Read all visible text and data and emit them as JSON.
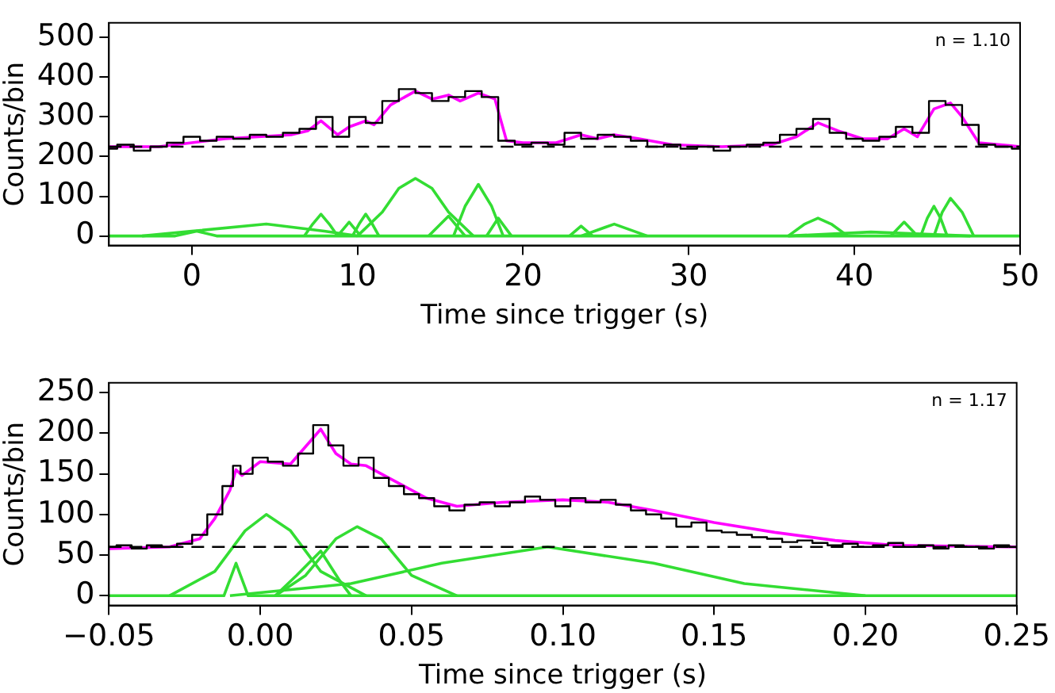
{
  "chart_data": [
    {
      "type": "line",
      "xlabel": "Time since trigger (s)",
      "ylabel": "Counts/bin",
      "annotations": [
        "n = 1.10"
      ],
      "xlim": [
        -5,
        50
      ],
      "ylim": [
        -24,
        537
      ],
      "xticks": [
        0,
        10,
        20,
        30,
        40,
        50
      ],
      "yticks": [
        0,
        100,
        200,
        300,
        400,
        500
      ],
      "grid": false,
      "legend": false,
      "marker": "none",
      "ref_lines": [
        {
          "axis": "y",
          "value": 225,
          "color": "#000000",
          "line_style": "dashed"
        }
      ],
      "series": [
        {
          "type": "step",
          "color": "#000000",
          "x": [
            -5,
            -4,
            -3,
            -2,
            -1,
            0,
            1,
            2,
            3,
            4,
            5,
            6,
            7,
            8,
            9,
            10,
            11,
            12,
            13,
            14,
            15,
            16,
            17,
            18,
            19,
            20,
            21,
            22,
            23,
            24,
            25,
            26,
            27,
            28,
            29,
            30,
            31,
            32,
            33,
            34,
            35,
            36,
            37,
            38,
            39,
            40,
            41,
            42,
            43,
            44,
            45,
            46,
            47,
            48,
            49,
            50
          ],
          "values": [
            220,
            230,
            215,
            225,
            235,
            250,
            240,
            250,
            245,
            255,
            250,
            260,
            270,
            300,
            250,
            300,
            285,
            340,
            370,
            360,
            340,
            350,
            365,
            350,
            240,
            230,
            235,
            230,
            260,
            245,
            255,
            250,
            240,
            225,
            230,
            220,
            225,
            215,
            225,
            230,
            235,
            255,
            270,
            295,
            260,
            245,
            240,
            250,
            275,
            260,
            340,
            330,
            280,
            230,
            225,
            220
          ]
        },
        {
          "type": "line",
          "color": "#ff00ff",
          "x": [
            -5,
            -2,
            0,
            2,
            4,
            6,
            7,
            7.8,
            8.8,
            9.5,
            10.5,
            11,
            12,
            13.5,
            14.5,
            15.5,
            16.2,
            17.3,
            18.3,
            19,
            20,
            22,
            23.5,
            24.5,
            25.5,
            27,
            29,
            32,
            35,
            36.5,
            37.8,
            39,
            40.5,
            42,
            43,
            43.8,
            44.8,
            45.8,
            46.5,
            47.5,
            50
          ],
          "values": [
            225,
            225,
            235,
            245,
            250,
            255,
            265,
            290,
            255,
            275,
            290,
            280,
            330,
            365,
            345,
            355,
            340,
            360,
            345,
            240,
            235,
            235,
            255,
            245,
            255,
            245,
            230,
            225,
            230,
            250,
            285,
            265,
            245,
            245,
            270,
            250,
            320,
            335,
            300,
            235,
            225
          ]
        },
        {
          "type": "line",
          "color": "#33dd33",
          "x": [
            -5,
            -1,
            0.3,
            1.5,
            50
          ],
          "values": [
            0,
            0,
            12,
            0,
            0
          ]
        },
        {
          "type": "line",
          "color": "#33dd33",
          "x": [
            -3,
            0,
            4.5,
            8,
            10
          ],
          "values": [
            0,
            12,
            30,
            12,
            0
          ]
        },
        {
          "type": "line",
          "color": "#33dd33",
          "x": [
            6.8,
            7.3,
            7.8,
            8.3,
            8.8
          ],
          "values": [
            0,
            30,
            55,
            30,
            0
          ]
        },
        {
          "type": "line",
          "color": "#33dd33",
          "x": [
            8.8,
            9.5,
            10.2
          ],
          "values": [
            0,
            35,
            0
          ]
        },
        {
          "type": "line",
          "color": "#33dd33",
          "x": [
            9.7,
            10.1,
            10.5,
            10.9,
            11.3
          ],
          "values": [
            0,
            30,
            55,
            30,
            0
          ]
        },
        {
          "type": "line",
          "color": "#33dd33",
          "x": [
            10,
            11.5,
            12.5,
            13.5,
            14.5,
            15.5,
            17
          ],
          "values": [
            0,
            60,
            120,
            145,
            120,
            60,
            0
          ]
        },
        {
          "type": "line",
          "color": "#33dd33",
          "x": [
            14.3,
            15.5,
            16.5
          ],
          "values": [
            0,
            50,
            0
          ]
        },
        {
          "type": "line",
          "color": "#33dd33",
          "x": [
            15.8,
            16.5,
            17.3,
            18.1,
            18.8
          ],
          "values": [
            0,
            75,
            130,
            75,
            0
          ]
        },
        {
          "type": "line",
          "color": "#33dd33",
          "x": [
            17.8,
            18.5,
            19.3
          ],
          "values": [
            0,
            45,
            0
          ]
        },
        {
          "type": "line",
          "color": "#33dd33",
          "x": [
            22.8,
            23.5,
            24.2
          ],
          "values": [
            0,
            25,
            0
          ]
        },
        {
          "type": "line",
          "color": "#33dd33",
          "x": [
            23.5,
            25.5,
            27.5
          ],
          "values": [
            0,
            30,
            0
          ]
        },
        {
          "type": "line",
          "color": "#33dd33",
          "x": [
            36,
            37,
            37.8,
            38.6,
            39.6
          ],
          "values": [
            0,
            30,
            45,
            30,
            0
          ]
        },
        {
          "type": "line",
          "color": "#33dd33",
          "x": [
            36,
            41,
            47
          ],
          "values": [
            0,
            10,
            0
          ]
        },
        {
          "type": "line",
          "color": "#33dd33",
          "x": [
            42.2,
            43,
            43.8
          ],
          "values": [
            0,
            35,
            0
          ]
        },
        {
          "type": "line",
          "color": "#33dd33",
          "x": [
            44,
            44.4,
            44.8,
            45.2,
            45.6
          ],
          "values": [
            0,
            45,
            75,
            45,
            0
          ]
        },
        {
          "type": "line",
          "color": "#33dd33",
          "x": [
            44.8,
            45.3,
            45.8,
            46.5,
            47.2
          ],
          "values": [
            0,
            60,
            95,
            60,
            0
          ]
        }
      ]
    },
    {
      "type": "line",
      "xlabel": "Time since trigger (s)",
      "ylabel": "Counts/bin",
      "annotations": [
        "n = 1.17"
      ],
      "xlim": [
        -0.05,
        0.25
      ],
      "ylim": [
        -12,
        262
      ],
      "xticks": [
        {
          "value": -0.05,
          "label": "−0.05"
        },
        {
          "value": 0,
          "label": "0.00"
        },
        0.05,
        {
          "value": 0.1,
          "label": "0.10"
        },
        0.15,
        {
          "value": 0.2,
          "label": "0.20"
        },
        0.25
      ],
      "yticks": [
        0,
        50,
        100,
        150,
        200,
        250
      ],
      "grid": false,
      "legend": false,
      "marker": "none",
      "ref_lines": [
        {
          "axis": "y",
          "value": 60,
          "color": "#000000",
          "line_style": "dashed"
        }
      ],
      "series": [
        {
          "type": "step",
          "color": "#000000",
          "x": [
            -0.05,
            -0.045,
            -0.04,
            -0.035,
            -0.03,
            -0.025,
            -0.02,
            -0.015,
            -0.01,
            -0.008,
            -0.005,
            0,
            0.005,
            0.01,
            0.015,
            0.02,
            0.025,
            0.03,
            0.035,
            0.04,
            0.045,
            0.05,
            0.055,
            0.06,
            0.065,
            0.07,
            0.075,
            0.08,
            0.085,
            0.09,
            0.095,
            0.1,
            0.105,
            0.11,
            0.115,
            0.12,
            0.125,
            0.13,
            0.135,
            0.14,
            0.145,
            0.15,
            0.155,
            0.16,
            0.165,
            0.17,
            0.175,
            0.18,
            0.185,
            0.19,
            0.195,
            0.2,
            0.205,
            0.21,
            0.215,
            0.22,
            0.225,
            0.23,
            0.235,
            0.24,
            0.245,
            0.25
          ],
          "values": [
            60,
            62,
            58,
            62,
            60,
            64,
            75,
            100,
            135,
            160,
            150,
            170,
            165,
            160,
            175,
            210,
            185,
            160,
            170,
            145,
            135,
            125,
            120,
            110,
            105,
            112,
            115,
            110,
            115,
            122,
            118,
            110,
            120,
            115,
            118,
            112,
            105,
            100,
            95,
            85,
            90,
            80,
            78,
            75,
            72,
            70,
            66,
            68,
            65,
            62,
            64,
            60,
            62,
            65,
            60,
            62,
            58,
            62,
            60,
            58,
            62,
            60
          ]
        },
        {
          "type": "line",
          "color": "#ff00ff",
          "x": [
            -0.05,
            -0.03,
            -0.02,
            -0.015,
            -0.01,
            -0.008,
            -0.006,
            0,
            0.01,
            0.02,
            0.025,
            0.03,
            0.035,
            0.045,
            0.055,
            0.065,
            0.08,
            0.1,
            0.115,
            0.13,
            0.15,
            0.17,
            0.19,
            0.21,
            0.25
          ],
          "values": [
            58,
            60,
            70,
            95,
            130,
            155,
            148,
            165,
            162,
            205,
            175,
            162,
            160,
            140,
            120,
            110,
            115,
            118,
            115,
            105,
            90,
            78,
            68,
            62,
            60
          ]
        },
        {
          "type": "line",
          "color": "#33dd33",
          "x": [
            -0.05,
            -0.012,
            -0.008,
            -0.004,
            0.25
          ],
          "values": [
            0,
            0,
            40,
            0,
            0
          ]
        },
        {
          "type": "line",
          "color": "#33dd33",
          "x": [
            -0.03,
            -0.015,
            -0.005,
            0.002,
            0.01,
            0.02,
            0.035
          ],
          "values": [
            0,
            30,
            80,
            100,
            80,
            30,
            0
          ]
        },
        {
          "type": "line",
          "color": "#33dd33",
          "x": [
            0.005,
            0.012,
            0.02,
            0.026,
            0.03
          ],
          "values": [
            0,
            25,
            55,
            20,
            0
          ]
        },
        {
          "type": "line",
          "color": "#33dd33",
          "x": [
            0.005,
            0.015,
            0.025,
            0.032,
            0.04,
            0.05,
            0.065
          ],
          "values": [
            0,
            25,
            70,
            85,
            70,
            25,
            0
          ]
        },
        {
          "type": "line",
          "color": "#33dd33",
          "x": [
            -0.01,
            0.03,
            0.06,
            0.095,
            0.13,
            0.16,
            0.2
          ],
          "values": [
            0,
            15,
            40,
            60,
            40,
            15,
            0
          ]
        }
      ]
    }
  ]
}
